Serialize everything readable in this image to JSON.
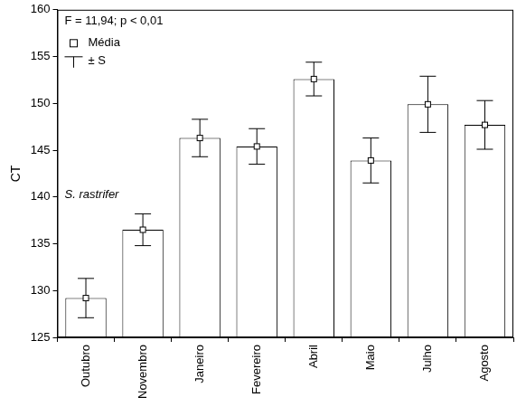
{
  "chart_data": {
    "type": "bar",
    "y_label": "CT",
    "annotations": [
      "F = 11,94; p < 0,01",
      "S. rastrifer"
    ],
    "categories": [
      "Outubro",
      "Novembro",
      "Janeiro",
      "Fevereiro",
      "Abril",
      "Maio",
      "Julho",
      "Agosto"
    ],
    "series": [
      {
        "name": "Média",
        "color": "#ffffff",
        "marker": "square",
        "values": [
          129.2,
          136.5,
          146.3,
          145.4,
          152.6,
          143.9,
          149.9,
          147.7
        ],
        "error_name": "± S",
        "errors": [
          2.1,
          1.7,
          2.0,
          1.9,
          1.8,
          2.4,
          3.0,
          2.6
        ]
      }
    ],
    "ylim": [
      125,
      160
    ],
    "yticks": [
      125,
      130,
      135,
      140,
      145,
      150,
      155,
      160
    ],
    "grid": false,
    "legend": "upper left"
  }
}
